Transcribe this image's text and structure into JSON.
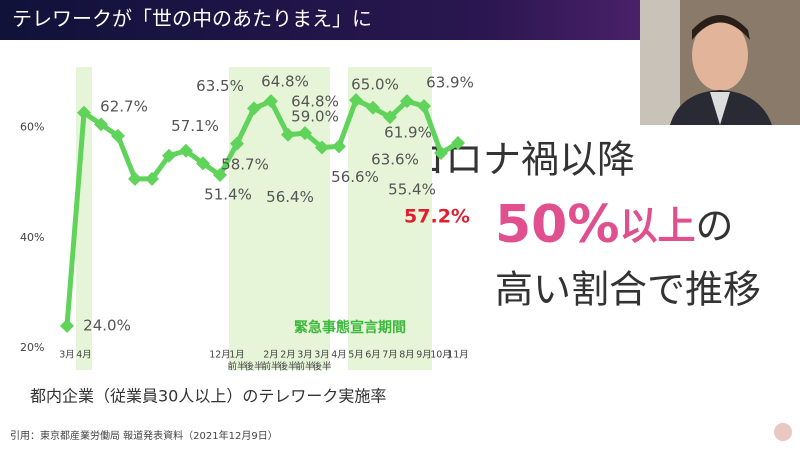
{
  "header": {
    "title": "テレワークが「世の中のあたりまえ」に"
  },
  "side_text": {
    "line1": "コロナ禍以降",
    "big": "50%",
    "pink": "以上",
    "suffix": "の",
    "line3": "高い割合で推移"
  },
  "caption": "都内企業（従業員30人以上）のテレワーク実施率",
  "source": "引用：東京都産業労働局 報道発表資料（2021年12月9日）",
  "chart_data": {
    "type": "line",
    "categories": [
      "3月",
      "4月",
      null,
      null,
      null,
      null,
      null,
      null,
      null,
      "12月",
      "1月",
      null,
      "2月",
      "2月",
      "3月",
      "3月",
      "4月",
      "5月",
      "6月",
      "7月",
      "8月",
      "9月",
      "10月",
      "11月"
    ],
    "sub_categories": [
      null,
      null,
      null,
      null,
      null,
      null,
      null,
      null,
      null,
      null,
      "前半",
      "後半",
      "前半",
      "後半",
      "前半",
      "後半",
      null,
      null,
      null,
      null,
      null,
      null,
      null,
      null
    ],
    "series": [
      {
        "name": "テレワーク実施率",
        "color": "#5fd35a",
        "values": [
          24.0,
          62.7,
          60.6,
          58.5,
          50.7,
          50.7,
          54.9,
          55.8,
          53.5,
          51.4,
          57.1,
          63.5,
          64.8,
          58.7,
          59.0,
          56.4,
          56.6,
          65.0,
          63.6,
          61.9,
          64.8,
          63.9,
          55.4,
          57.2
        ],
        "value_labels": [
          "24.0%",
          "62.7%",
          null,
          null,
          null,
          null,
          null,
          null,
          null,
          "51.4%",
          "57.1%",
          "63.5%",
          "64.8%",
          "58.7%",
          "59.0%",
          "56.4%",
          "56.6%",
          "65.0%",
          "63.6%",
          "61.9%",
          "64.8%",
          "63.9%",
          "55.4%",
          "57.2%"
        ]
      }
    ],
    "highlight_label_color": "#e0202e",
    "shaded_ranges": [
      [
        1,
        1
      ],
      [
        10,
        15
      ],
      [
        17,
        21
      ]
    ],
    "shaded_label": "緊急事態宣言期間",
    "shade_color": "#e6f5d8",
    "ylim": [
      16,
      75
    ],
    "yticks": [
      {
        "value": 20,
        "label": "20%"
      },
      {
        "value": 40,
        "label": "40%"
      },
      {
        "value": 60,
        "label": "60%"
      }
    ]
  }
}
